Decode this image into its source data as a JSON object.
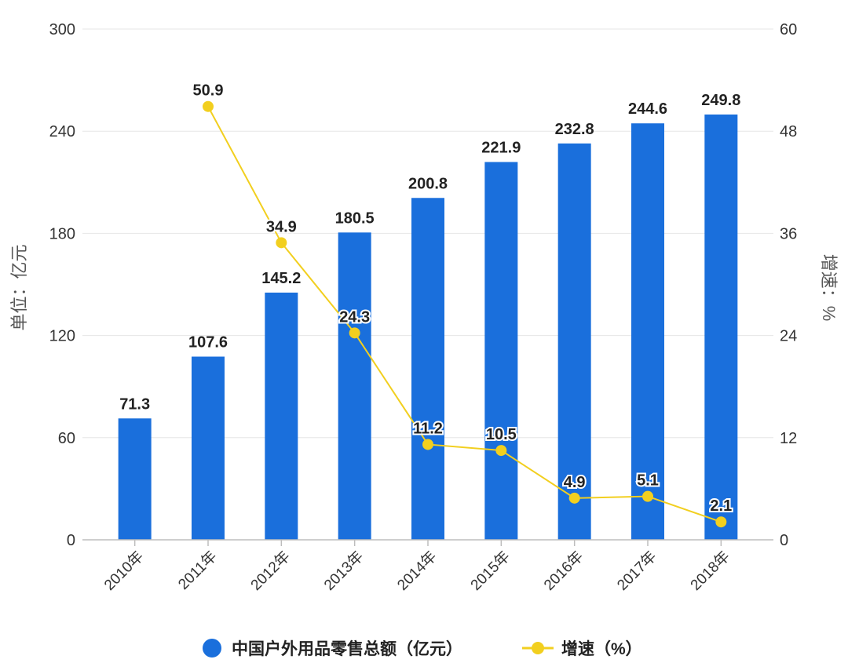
{
  "chart_data": {
    "type": "bar",
    "categories": [
      "2010年",
      "2011年",
      "2012年",
      "2013年",
      "2014年",
      "2015年",
      "2016年",
      "2017年",
      "2018年"
    ],
    "series": [
      {
        "name": "中国户外用品零售总额（亿元）",
        "type": "bar",
        "axis": "left",
        "color": "#1a6fdc",
        "values": [
          71.3,
          107.6,
          145.2,
          180.5,
          200.8,
          221.9,
          232.8,
          244.6,
          249.8
        ]
      },
      {
        "name": "增速（%）",
        "type": "line",
        "axis": "right",
        "color": "#f2cf1f",
        "values": [
          null,
          50.9,
          34.9,
          24.3,
          11.2,
          10.5,
          4.9,
          5.1,
          2.1
        ]
      }
    ],
    "ylabel": "单位：亿元",
    "y2label": "增速：%",
    "ylim": [
      0,
      300
    ],
    "y2lim": [
      0,
      60
    ],
    "yticks": [
      "0",
      "60",
      "120",
      "180",
      "240",
      "300"
    ],
    "y2ticks": [
      "0",
      "12",
      "24",
      "36",
      "48",
      "60"
    ],
    "grid": true,
    "legend": "bottom"
  }
}
